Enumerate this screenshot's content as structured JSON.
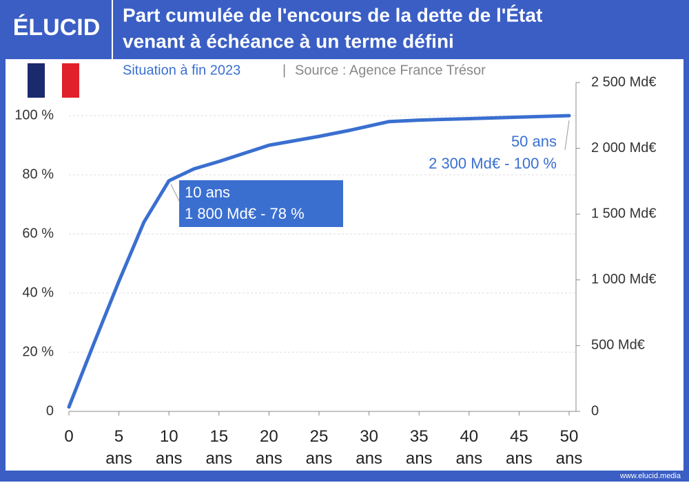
{
  "brand": "ÉLUCID",
  "footer": "www.elucid.media",
  "chart_data": {
    "type": "line",
    "title": [
      "Part cumulée de l'encours de la dette de l'État",
      "venant à échéance à un terme défini"
    ],
    "subtitle": "Situation à fin 2023",
    "separator": "|",
    "source": "Source : Agence France Trésor",
    "x": [
      0,
      2.5,
      5,
      7.5,
      10,
      12.5,
      15,
      20,
      25,
      28,
      30,
      32,
      35,
      40,
      45,
      50
    ],
    "series": [
      {
        "name": "Part cumulée",
        "color": "#3a6fd0",
        "values": [
          1.5,
          23,
          44,
          64,
          78,
          82,
          84.5,
          90,
          93,
          95,
          96.5,
          98,
          98.5,
          99,
          99.5,
          100
        ]
      }
    ],
    "xlim": [
      0,
      50
    ],
    "xticks": [
      0,
      {
        "value": 5,
        "label": "5 ans"
      },
      {
        "value": 10,
        "label": "10 ans"
      },
      {
        "value": 15,
        "label": "15 ans"
      },
      {
        "value": 20,
        "label": "20 ans"
      },
      {
        "value": 25,
        "label": "25 ans"
      },
      {
        "value": 30,
        "label": "30 ans"
      },
      {
        "value": 35,
        "label": "35 ans"
      },
      {
        "value": 40,
        "label": "40 ans"
      },
      {
        "value": 45,
        "label": "45 ans"
      },
      {
        "value": 50,
        "label": "50 ans"
      }
    ],
    "ylim": [
      0,
      111.2
    ],
    "yticks": [
      0,
      {
        "value": 20,
        "label": "20 %"
      },
      {
        "value": 40,
        "label": "40 %"
      },
      {
        "value": 60,
        "label": "60 %"
      },
      {
        "value": 80,
        "label": "80 %"
      },
      {
        "value": 100,
        "label": "100 %"
      }
    ],
    "y2lim": [
      0,
      2500
    ],
    "y2ticks": [
      0,
      {
        "value": 500,
        "label": "500 Md€"
      },
      {
        "value": 1000,
        "label": "1 000 Md€"
      },
      {
        "value": 1500,
        "label": "1 500 Md€"
      },
      {
        "value": 2000,
        "label": "2 000 Md€"
      },
      {
        "value": 2500,
        "label": "2 500 Md€"
      }
    ],
    "grid": true,
    "annotations": [
      {
        "lines": [
          "10 ans",
          "1 800 Md€ - 78 %"
        ]
      },
      {
        "lines": [
          "50 ans",
          "2 300 Md€ - 100 %"
        ]
      }
    ]
  }
}
